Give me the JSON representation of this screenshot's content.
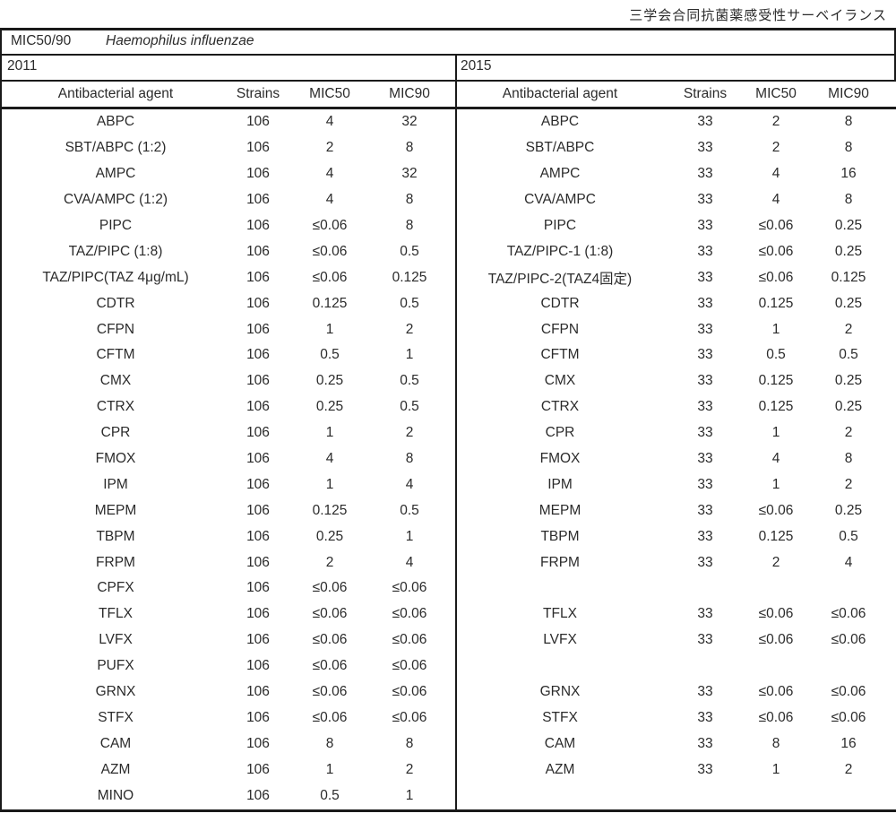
{
  "page_title": "三学会合同抗菌薬感受性サーベイランス",
  "table": {
    "metric_label": "MIC50/90",
    "organism": "Haemophilus influenzae",
    "columns": [
      "Antibacterial agent",
      "Strains",
      "MIC50",
      "MIC90"
    ],
    "sections": [
      {
        "year": "2011",
        "rows": [
          [
            "ABPC",
            "106",
            "4",
            "32"
          ],
          [
            "SBT/ABPC (1:2)",
            "106",
            "2",
            "8"
          ],
          [
            "AMPC",
            "106",
            "4",
            "32"
          ],
          [
            "CVA/AMPC (1:2)",
            "106",
            "4",
            "8"
          ],
          [
            "PIPC",
            "106",
            "≤0.06",
            "8"
          ],
          [
            "TAZ/PIPC (1:8)",
            "106",
            "≤0.06",
            "0.5"
          ],
          [
            "TAZ/PIPC(TAZ 4μg/mL)",
            "106",
            "≤0.06",
            "0.125"
          ],
          [
            "CDTR",
            "106",
            "0.125",
            "0.5"
          ],
          [
            "CFPN",
            "106",
            "1",
            "2"
          ],
          [
            "CFTM",
            "106",
            "0.5",
            "1"
          ],
          [
            "CMX",
            "106",
            "0.25",
            "0.5"
          ],
          [
            "CTRX",
            "106",
            "0.25",
            "0.5"
          ],
          [
            "CPR",
            "106",
            "1",
            "2"
          ],
          [
            "FMOX",
            "106",
            "4",
            "8"
          ],
          [
            "IPM",
            "106",
            "1",
            "4"
          ],
          [
            "MEPM",
            "106",
            "0.125",
            "0.5"
          ],
          [
            "TBPM",
            "106",
            "0.25",
            "1"
          ],
          [
            "FRPM",
            "106",
            "2",
            "4"
          ],
          [
            "CPFX",
            "106",
            "≤0.06",
            "≤0.06"
          ],
          [
            "TFLX",
            "106",
            "≤0.06",
            "≤0.06"
          ],
          [
            "LVFX",
            "106",
            "≤0.06",
            "≤0.06"
          ],
          [
            "PUFX",
            "106",
            "≤0.06",
            "≤0.06"
          ],
          [
            "GRNX",
            "106",
            "≤0.06",
            "≤0.06"
          ],
          [
            "STFX",
            "106",
            "≤0.06",
            "≤0.06"
          ],
          [
            "CAM",
            "106",
            "8",
            "8"
          ],
          [
            "AZM",
            "106",
            "1",
            "2"
          ],
          [
            "MINO",
            "106",
            "0.5",
            "1"
          ]
        ]
      },
      {
        "year": "2015",
        "rows": [
          [
            "ABPC",
            "33",
            "2",
            "8"
          ],
          [
            "SBT/ABPC",
            "33",
            "2",
            "8"
          ],
          [
            "AMPC",
            "33",
            "4",
            "16"
          ],
          [
            "CVA/AMPC",
            "33",
            "4",
            "8"
          ],
          [
            "PIPC",
            "33",
            "≤0.06",
            "0.25"
          ],
          [
            "TAZ/PIPC-1 (1:8)",
            "33",
            "≤0.06",
            "0.25"
          ],
          [
            "TAZ/PIPC-2(TAZ4固定)",
            "33",
            "≤0.06",
            "0.125"
          ],
          [
            "CDTR",
            "33",
            "0.125",
            "0.25"
          ],
          [
            "CFPN",
            "33",
            "1",
            "2"
          ],
          [
            "CFTM",
            "33",
            "0.5",
            "0.5"
          ],
          [
            "CMX",
            "33",
            "0.125",
            "0.25"
          ],
          [
            "CTRX",
            "33",
            "0.125",
            "0.25"
          ],
          [
            "CPR",
            "33",
            "1",
            "2"
          ],
          [
            "FMOX",
            "33",
            "4",
            "8"
          ],
          [
            "IPM",
            "33",
            "1",
            "2"
          ],
          [
            "MEPM",
            "33",
            "≤0.06",
            "0.25"
          ],
          [
            "TBPM",
            "33",
            "0.125",
            "0.5"
          ],
          [
            "FRPM",
            "33",
            "2",
            "4"
          ],
          [
            "",
            "",
            "",
            ""
          ],
          [
            "TFLX",
            "33",
            "≤0.06",
            "≤0.06"
          ],
          [
            "LVFX",
            "33",
            "≤0.06",
            "≤0.06"
          ],
          [
            "",
            "",
            "",
            ""
          ],
          [
            "GRNX",
            "33",
            "≤0.06",
            "≤0.06"
          ],
          [
            "STFX",
            "33",
            "≤0.06",
            "≤0.06"
          ],
          [
            "CAM",
            "33",
            "8",
            "16"
          ],
          [
            "AZM",
            "33",
            "1",
            "2"
          ],
          [
            "",
            "",
            "",
            ""
          ]
        ]
      }
    ]
  }
}
